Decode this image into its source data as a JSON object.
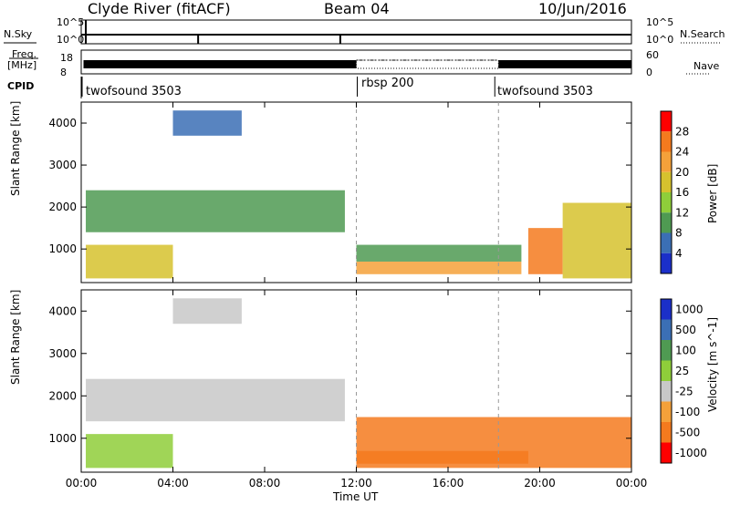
{
  "header": {
    "station": "Clyde River (fitACF)",
    "beam": "Beam 04",
    "date": "10/Jun/2016"
  },
  "status_panels": {
    "nsky_label": "N.Sky",
    "nsky_ticks": [
      "10^5",
      "10^0"
    ],
    "nsearch_label": "N.Search",
    "nsearch_ticks": [
      "10^5",
      "10^0"
    ],
    "freq_label_1": "Freq.",
    "freq_label_2": "[MHz]",
    "freq_ticks": [
      "18",
      "8"
    ],
    "nave_label": "Nave",
    "nave_ticks": [
      "60",
      "0"
    ],
    "cpid_label": "CPID",
    "cpid_segments": [
      {
        "name": "twofsound 3503",
        "start_hour": 0
      },
      {
        "name": "rbsp 200",
        "start_hour": 12
      },
      {
        "name": "twofsound 3503",
        "start_hour": 18
      }
    ]
  },
  "chart_data": [
    {
      "type": "heatmap",
      "quantity": "Power",
      "ylabel": "Slant Range [km]",
      "xlabel": "Time UT",
      "xlim_hours": [
        0,
        24
      ],
      "ylim": [
        200,
        4500
      ],
      "x_ticks": [
        "00:00",
        "04:00",
        "08:00",
        "12:00",
        "16:00",
        "20:00",
        "00:00"
      ],
      "y_ticks": [
        "1000",
        "2000",
        "3000",
        "4000"
      ],
      "colorbar_label": "Power [dB]",
      "colorbar_ticks": [
        "28",
        "24",
        "20",
        "16",
        "12",
        "8",
        "4"
      ],
      "colorbar_colors": [
        "#ff0000",
        "#f47a1e",
        "#f4a13a",
        "#d6c22e",
        "#8fce3a",
        "#4f9a52",
        "#3b6fb5",
        "#1b2fc9"
      ],
      "regions": [
        {
          "t0": 0.2,
          "t1": 4.0,
          "r0": 300,
          "r1": 1100,
          "level": 20
        },
        {
          "t0": 0.2,
          "t1": 11.5,
          "r0": 1400,
          "r1": 2400,
          "level": 10
        },
        {
          "t0": 4.0,
          "t1": 7.0,
          "r0": 3700,
          "r1": 4300,
          "level": 6
        },
        {
          "t0": 12.0,
          "t1": 19.2,
          "r0": 400,
          "r1": 700,
          "level": 24
        },
        {
          "t0": 12.0,
          "t1": 19.2,
          "r0": 700,
          "r1": 1100,
          "level": 10
        },
        {
          "t0": 19.5,
          "t1": 21.0,
          "r0": 400,
          "r1": 1500,
          "level": 28
        },
        {
          "t0": 21.0,
          "t1": 24.0,
          "r0": 300,
          "r1": 2100,
          "level": 18
        }
      ]
    },
    {
      "type": "heatmap",
      "quantity": "Velocity",
      "ylabel": "Slant Range [km]",
      "xlabel": "Time UT",
      "xlim_hours": [
        0,
        24
      ],
      "ylim": [
        200,
        4500
      ],
      "x_ticks": [
        "00:00",
        "04:00",
        "08:00",
        "12:00",
        "16:00",
        "20:00",
        "00:00"
      ],
      "y_ticks": [
        "1000",
        "2000",
        "3000",
        "4000"
      ],
      "colorbar_label": "Velocity [m s^-1]",
      "colorbar_ticks": [
        "1000",
        "500",
        "100",
        "25",
        "-25",
        "-100",
        "-500",
        "-1000"
      ],
      "colorbar_colors": [
        "#1b2fc9",
        "#3b6fb5",
        "#4f9a52",
        "#8fce3a",
        "#c8c8c8",
        "#f4a13a",
        "#f47a1e",
        "#ff0000"
      ],
      "regions": [
        {
          "t0": 0.2,
          "t1": 11.5,
          "r0": 1400,
          "r1": 2400,
          "level": 0
        },
        {
          "t0": 0.2,
          "t1": 4.0,
          "r0": 300,
          "r1": 1100,
          "level": 50
        },
        {
          "t0": 4.0,
          "t1": 7.0,
          "r0": 3700,
          "r1": 4300,
          "level": 0
        },
        {
          "t0": 12.0,
          "t1": 24.0,
          "r0": 300,
          "r1": 1500,
          "level": -200
        },
        {
          "t0": 12.0,
          "t1": 19.5,
          "r0": 400,
          "r1": 700,
          "level": -150
        }
      ]
    }
  ]
}
